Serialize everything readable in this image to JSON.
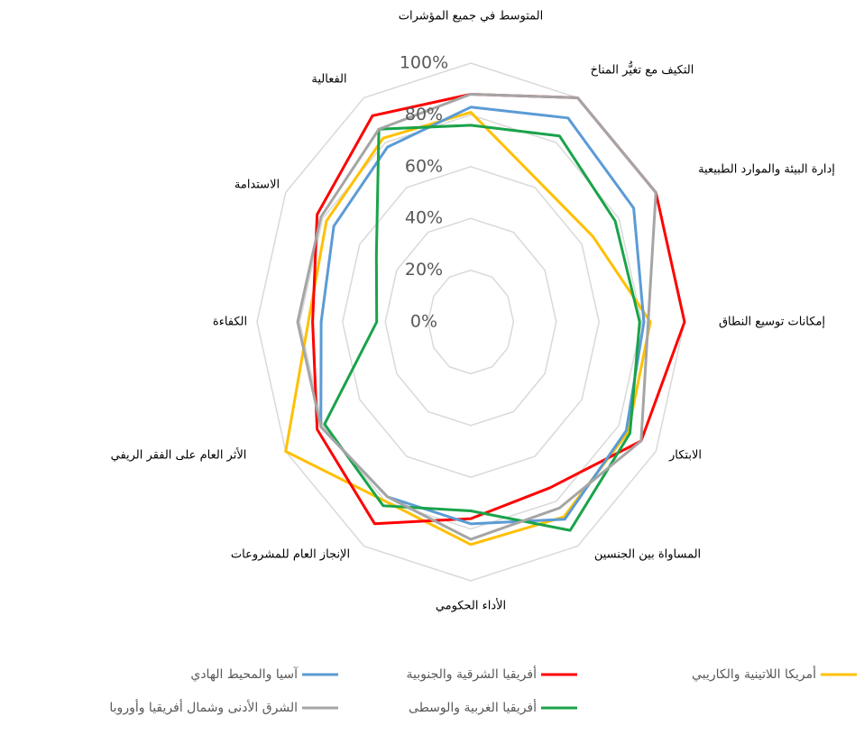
{
  "chart_data": {
    "type": "radar",
    "categories": [
      "المتوسط في جميع المؤشرات",
      "التكيف مع تغيُّر المناخ",
      "إدارة البيئة والموارد الطبيعية",
      "إمكانات توسيع النطاق",
      "الابتكار",
      "المساواة بين الجنسين",
      "الأداء الحكومي",
      "الإنجاز العام للمشروعات",
      "الأثر العام على الفقر الريفي",
      "الكفاءة",
      "الاستدامة",
      "الفعالية"
    ],
    "ylim": [
      0,
      100
    ],
    "yticks": [
      {
        "value": 0,
        "label": "0%"
      },
      {
        "value": 20,
        "label": "20%"
      },
      {
        "value": 40,
        "label": "40%"
      },
      {
        "value": 60,
        "label": "60%"
      },
      {
        "value": 80,
        "label": "80%"
      },
      {
        "value": 100,
        "label": "100%"
      }
    ],
    "grid": true,
    "legend": "bottom",
    "series": [
      {
        "name": "أمريكا اللاتينية والكاريبي",
        "color": "#ffc000",
        "values": [
          81,
          63,
          66,
          84,
          85,
          87,
          86,
          80,
          100,
          76,
          78,
          82
        ]
      },
      {
        "name": "أفريقيا الشرقية والجنوبية",
        "color": "#ff0000",
        "values": [
          88,
          100,
          100,
          100,
          92,
          74,
          76,
          90,
          83,
          74,
          83,
          92
        ]
      },
      {
        "name": "آسيا والمحيط الهادي",
        "color": "#5b9bd5",
        "values": [
          83,
          91,
          88,
          81,
          84,
          88,
          78,
          78,
          81,
          70,
          74,
          78
        ]
      },
      {
        "name": "أفريقيا الغربية والوسطى",
        "color": "#1aa34a",
        "values": [
          76,
          83,
          78,
          79,
          86,
          93,
          73,
          82,
          79,
          44,
          51,
          86
        ]
      },
      {
        "name": "الشرق الأدنى وشمال أفريقيا وأوروبا",
        "color": "#a5a5a5",
        "values": [
          88,
          100,
          100,
          83,
          92,
          83,
          84,
          78,
          81,
          81,
          81,
          86
        ]
      }
    ]
  }
}
